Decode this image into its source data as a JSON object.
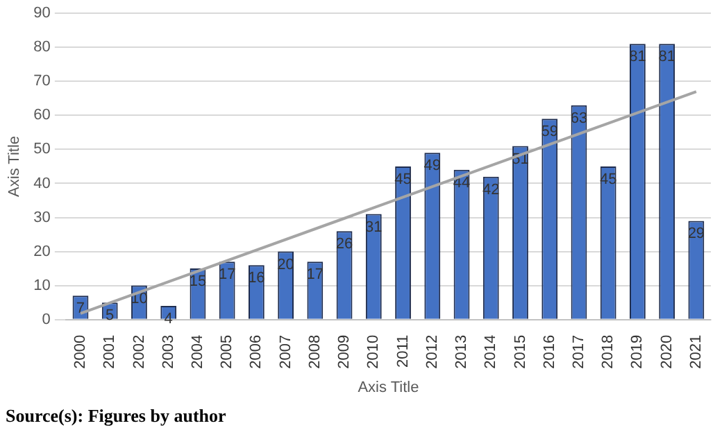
{
  "chart_data": {
    "type": "bar",
    "xlabel": "Axis Title",
    "ylabel": "Axis Title",
    "categories": [
      "2000",
      "2001",
      "2002",
      "2003",
      "2004",
      "2005",
      "2006",
      "2007",
      "2008",
      "2009",
      "2010",
      "2011",
      "2012",
      "2013",
      "2014",
      "2015",
      "2016",
      "2017",
      "2018",
      "2019",
      "2020",
      "2021"
    ],
    "series": [
      {
        "color": "#4472c4",
        "values": [
          7,
          5,
          10,
          4,
          15,
          17,
          16,
          20,
          17,
          26,
          31,
          45,
          49,
          44,
          42,
          51,
          59,
          63,
          45,
          81,
          81,
          29
        ],
        "value_labels": [
          "7",
          "5",
          "10",
          "4",
          "15",
          "17",
          "16",
          "20",
          "17",
          "26",
          "31",
          "45",
          "49",
          "44",
          "42",
          "51",
          "59",
          "63",
          "45",
          "81",
          "81",
          "29"
        ]
      },
      {
        "type": "line",
        "color": "#a5a5a5",
        "values": [
          1.8,
          null,
          null,
          null,
          null,
          null,
          null,
          null,
          null,
          null,
          null,
          null,
          null,
          null,
          null,
          null,
          null,
          null,
          null,
          null,
          null,
          67
        ]
      }
    ],
    "ylim": [
      0,
      90
    ],
    "yticks": [
      0,
      10,
      20,
      30,
      40,
      50,
      60,
      70,
      80,
      90
    ],
    "grid": "y",
    "legend": false,
    "marker": "none",
    "annotations": [
      "Source(s): Figures by author"
    ]
  }
}
